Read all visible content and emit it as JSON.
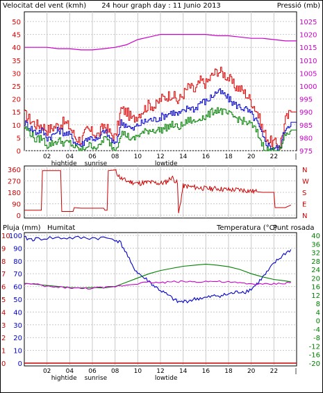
{
  "title": "24 hour graph day : 11 Junio 2013",
  "colors": {
    "wind": "#e00000",
    "gust": "#e00000",
    "wind_avg": "#0000cc",
    "wind_min": "#008000",
    "pressure": "#cc00cc",
    "direction": "#cc0000",
    "rain": "#cc0000",
    "humidity": "#0000cc",
    "temperature": "#008000",
    "dewpoint": "#cc00cc",
    "grid": "#c8c8c8"
  },
  "chart_data": [
    {
      "type": "line",
      "ylabel": "Velocitat del vent (kmh)",
      "ylabel_right": "Pressió (mb)",
      "ylim": [
        0,
        50
      ],
      "yticks": [
        0,
        5,
        10,
        15,
        20,
        25,
        30,
        35,
        40,
        45,
        50
      ],
      "ylim_right": [
        975,
        1025
      ],
      "yticks_right": [
        975,
        980,
        985,
        990,
        995,
        1000,
        1005,
        1010,
        1015,
        1020,
        1025
      ],
      "xlim": [
        0,
        24
      ],
      "xticks": [
        "02",
        "04",
        "06",
        "08",
        "10",
        "12",
        "14",
        "16",
        "18",
        "20",
        "22"
      ],
      "xtick_hours": [
        2,
        4,
        6,
        8,
        10,
        12,
        14,
        16,
        18,
        20,
        22
      ],
      "annotations": [
        {
          "text": "hightide",
          "hour": 3.5
        },
        {
          "text": "sunrise",
          "hour": 6.3
        },
        {
          "text": "lowtide",
          "hour": 12.5
        }
      ],
      "end_mark": "|",
      "series": [
        {
          "key": "gust",
          "x": [
            0,
            0.5,
            1,
            1.5,
            2,
            2.5,
            3,
            3.5,
            4,
            4.5,
            5,
            5.5,
            6,
            6.5,
            7,
            7.5,
            8,
            8.5,
            9,
            9.5,
            10,
            10.5,
            11,
            11.5,
            12,
            12.5,
            13,
            13.5,
            14,
            14.5,
            15,
            15.5,
            16,
            16.5,
            17,
            17.5,
            18,
            18.5,
            19,
            19.5,
            20,
            20.5,
            21,
            21.5,
            22,
            22.5,
            23,
            23.5
          ],
          "y": [
            14,
            12,
            10,
            10,
            8,
            9,
            10,
            11,
            9,
            5,
            4,
            8,
            7,
            6,
            10,
            7,
            5,
            16,
            15,
            12,
            14,
            16,
            18,
            17,
            20,
            21,
            22,
            19,
            22,
            25,
            23,
            27,
            26,
            29,
            31,
            30,
            28,
            25,
            24,
            22,
            19,
            15,
            8,
            4,
            3,
            2,
            12,
            15
          ]
        },
        {
          "key": "wind_avg",
          "x": [
            0,
            0.5,
            1,
            1.5,
            2,
            2.5,
            3,
            3.5,
            4,
            4.5,
            5,
            5.5,
            6,
            6.5,
            7,
            7.5,
            8,
            8.5,
            9,
            9.5,
            10,
            10.5,
            11,
            11.5,
            12,
            12.5,
            13,
            13.5,
            14,
            14.5,
            15,
            15.5,
            16,
            16.5,
            17,
            17.5,
            18,
            18.5,
            19,
            19.5,
            20,
            20.5,
            21,
            21.5,
            22,
            22.5,
            23,
            23.5
          ],
          "y": [
            11,
            9,
            7,
            8,
            5,
            6,
            8,
            7,
            6,
            3,
            2,
            5,
            5,
            4,
            8,
            5,
            2,
            11,
            10,
            8,
            10,
            11,
            12,
            12,
            13,
            14,
            15,
            14,
            15,
            17,
            16,
            19,
            19,
            21,
            23,
            22,
            20,
            18,
            17,
            16,
            14,
            11,
            5,
            2,
            1,
            1,
            9,
            11
          ]
        },
        {
          "key": "wind_min",
          "x": [
            0,
            0.5,
            1,
            1.5,
            2,
            2.5,
            3,
            3.5,
            4,
            4.5,
            5,
            5.5,
            6,
            6.5,
            7,
            7.5,
            8,
            8.5,
            9,
            9.5,
            10,
            10.5,
            11,
            11.5,
            12,
            12.5,
            13,
            13.5,
            14,
            14.5,
            15,
            15.5,
            16,
            16.5,
            17,
            17.5,
            18,
            18.5,
            19,
            19.5,
            20,
            20.5,
            21,
            21.5,
            22,
            22.5,
            23,
            23.5
          ],
          "y": [
            9,
            7,
            4,
            5,
            2,
            3,
            4,
            3,
            3,
            1,
            0,
            2,
            2,
            1,
            5,
            3,
            0,
            7,
            6,
            4,
            6,
            7,
            8,
            8,
            8,
            9,
            10,
            9,
            10,
            12,
            11,
            13,
            13,
            15,
            16,
            15,
            14,
            13,
            12,
            11,
            10,
            7,
            2,
            0,
            0,
            0,
            6,
            8
          ]
        },
        {
          "key": "pressure",
          "x": [
            0,
            1,
            2,
            3,
            4,
            5,
            6,
            7,
            8,
            9,
            10,
            11,
            12,
            13,
            14,
            15,
            16,
            17,
            18,
            19,
            20,
            21,
            22,
            23,
            24
          ],
          "y": [
            1015,
            1015,
            1015,
            1014.5,
            1014.5,
            1014,
            1014,
            1014.5,
            1015,
            1016,
            1018,
            1019,
            1020,
            1020,
            1020,
            1020,
            1020,
            1019.5,
            1019.5,
            1019,
            1018.5,
            1018.5,
            1018,
            1017.5,
            1017.5
          ]
        }
      ]
    },
    {
      "type": "line",
      "ylim": [
        0,
        360
      ],
      "yticks": [
        0,
        90,
        180,
        270,
        360
      ],
      "compass": [
        "N",
        "W",
        "S",
        "E",
        "N"
      ],
      "xlim": [
        0,
        24
      ],
      "series": [
        {
          "key": "direction",
          "x": [
            0,
            1.5,
            1.6,
            3.2,
            3.3,
            4.3,
            4.4,
            5,
            6,
            7,
            7.1,
            7.3,
            7.4,
            8,
            8.5,
            9,
            10,
            11,
            12,
            12.5,
            13,
            13.5,
            13.6,
            14,
            15,
            16,
            17,
            18,
            19,
            20,
            20.5,
            21,
            22,
            22.1,
            23,
            23.5
          ],
          "y": [
            40,
            40,
            350,
            350,
            30,
            30,
            60,
            55,
            55,
            55,
            40,
            40,
            350,
            350,
            290,
            270,
            250,
            260,
            250,
            260,
            300,
            250,
            10,
            230,
            220,
            210,
            210,
            200,
            200,
            190,
            185,
            180,
            180,
            60,
            60,
            80
          ]
        }
      ]
    },
    {
      "type": "line",
      "ylabel": "Pluja (mm)",
      "ylabel2": "Humitat",
      "ylabel_right": "Temperatura (°C)",
      "ylabel_right2": "Punt rosada",
      "rain_yticks": [
        0,
        1,
        2,
        3,
        4,
        5,
        6,
        7,
        8,
        9,
        10
      ],
      "hum_yticks": [
        0,
        10,
        20,
        30,
        40,
        50,
        60,
        70,
        80,
        90,
        100
      ],
      "hum_ylim": [
        0,
        100
      ],
      "temp_ylim": [
        -20,
        40
      ],
      "temp_yticks": [
        -20,
        -16,
        -12,
        -8,
        -4,
        0,
        4,
        8,
        12,
        16,
        20,
        24,
        28,
        32,
        36,
        40
      ],
      "xlim": [
        0,
        24
      ],
      "xticks": [
        "02",
        "04",
        "06",
        "08",
        "10",
        "12",
        "14",
        "16",
        "18",
        "20",
        "22"
      ],
      "xtick_hours": [
        2,
        4,
        6,
        8,
        10,
        12,
        14,
        16,
        18,
        20,
        22
      ],
      "annotations": [
        {
          "text": "hightide",
          "hour": 3.5
        },
        {
          "text": "sunrise",
          "hour": 6.3
        },
        {
          "text": "lowtide",
          "hour": 12.5
        }
      ],
      "series": [
        {
          "key": "humidity",
          "x": [
            0,
            0.5,
            1,
            2,
            3,
            4,
            5,
            6,
            7,
            8,
            8.5,
            9,
            9.5,
            10,
            10.5,
            11,
            11.5,
            12,
            12.5,
            13,
            13.5,
            14,
            14.5,
            15,
            15.5,
            16,
            16.5,
            17,
            17.5,
            18,
            18.5,
            19,
            19.5,
            20,
            20.5,
            21,
            21.5,
            22,
            22.5,
            23,
            23.5
          ],
          "y": [
            98,
            97,
            97,
            98,
            98,
            98,
            98,
            98,
            98,
            97,
            94,
            86,
            76,
            71,
            67,
            64,
            60,
            57,
            54,
            51,
            48,
            48,
            49,
            50,
            51,
            51,
            52,
            53,
            53,
            54,
            55,
            56,
            56,
            58,
            62,
            67,
            72,
            78,
            82,
            86,
            89
          ]
        },
        {
          "key": "temperature",
          "x": [
            0,
            1,
            2,
            3,
            4,
            5,
            6,
            7,
            8,
            9,
            10,
            11,
            12,
            13,
            14,
            15,
            16,
            17,
            18,
            19,
            20,
            21,
            22,
            23,
            23.5
          ],
          "y": [
            17.5,
            17,
            16.5,
            16,
            15.5,
            15.3,
            15.5,
            15.3,
            16,
            18,
            20,
            22,
            23.5,
            24.5,
            25.5,
            26,
            26.5,
            26,
            25.3,
            24,
            22,
            20.5,
            19.3,
            18.6,
            18.2
          ]
        },
        {
          "key": "dewpoint",
          "x": [
            0,
            1,
            2,
            3,
            4,
            5,
            6,
            7,
            8,
            9,
            10,
            11,
            12,
            13,
            14,
            15,
            16,
            17,
            18,
            19,
            20,
            21,
            22,
            23,
            23.5
          ],
          "y": [
            17.3,
            17,
            16,
            15.6,
            15.5,
            15,
            15.2,
            15.4,
            16,
            16.7,
            17.5,
            18,
            17.8,
            18.2,
            18.4,
            18.2,
            18.4,
            18.3,
            18,
            17.6,
            17.2,
            17,
            17.2,
            17.6,
            18
          ]
        },
        {
          "key": "rain",
          "x": [
            0,
            24
          ],
          "y": [
            0,
            0
          ]
        }
      ]
    }
  ]
}
